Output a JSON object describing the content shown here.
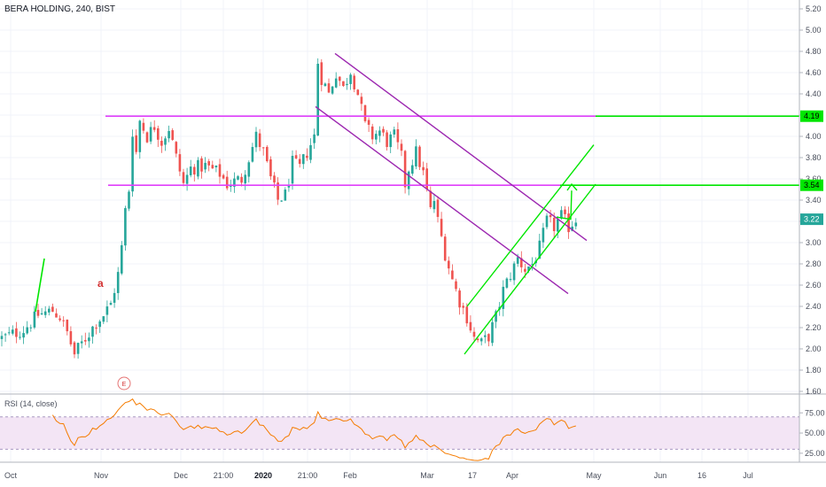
{
  "chart_data": {
    "type": "candlestick",
    "title": "BERA HOLDING, 240, BIST",
    "price_axis": {
      "range": [
        1.6,
        5.2
      ],
      "ticks": [
        "5.20",
        "5.00",
        "4.80",
        "4.60",
        "4.40",
        "4.20",
        "4.00",
        "3.80",
        "3.60",
        "3.40",
        "3.20",
        "3.00",
        "2.80",
        "2.60",
        "2.40",
        "2.20",
        "2.00",
        "1.80",
        "1.60"
      ]
    },
    "time_axis": [
      {
        "label": "Oct",
        "bold": false
      },
      {
        "label": "Nov",
        "bold": false
      },
      {
        "label": "Dec",
        "bold": false
      },
      {
        "label": "21:00",
        "bold": false
      },
      {
        "label": "2020",
        "bold": true
      },
      {
        "label": "21:00",
        "bold": false
      },
      {
        "label": "Feb",
        "bold": false
      },
      {
        "label": "Mar",
        "bold": false
      },
      {
        "label": "17",
        "bold": false
      },
      {
        "label": "Apr",
        "bold": false
      },
      {
        "label": "May",
        "bold": false
      },
      {
        "label": "Jun",
        "bold": false
      },
      {
        "label": "16",
        "bold": false
      },
      {
        "label": "Jul",
        "bold": false
      }
    ],
    "price_path": [
      [
        0,
        2.1
      ],
      [
        6,
        2.18
      ],
      [
        10,
        2.32
      ],
      [
        14,
        2.36
      ],
      [
        16,
        2.3
      ],
      [
        18,
        2.15
      ],
      [
        20,
        1.95
      ],
      [
        22,
        2.05
      ],
      [
        24,
        2.15
      ],
      [
        26,
        2.25
      ],
      [
        28,
        2.32
      ],
      [
        30,
        2.42
      ],
      [
        32,
        2.7
      ],
      [
        33,
        2.95
      ],
      [
        34,
        3.3
      ],
      [
        35,
        3.5
      ],
      [
        36,
        4.05
      ],
      [
        37,
        3.85
      ],
      [
        38,
        4.15
      ],
      [
        40,
        4.0
      ],
      [
        42,
        4.1
      ],
      [
        44,
        3.95
      ],
      [
        46,
        4.08
      ],
      [
        48,
        3.8
      ],
      [
        50,
        3.55
      ],
      [
        52,
        3.7
      ],
      [
        56,
        3.72
      ],
      [
        60,
        3.65
      ],
      [
        62,
        3.55
      ],
      [
        66,
        3.6
      ],
      [
        70,
        4.0
      ],
      [
        72,
        3.85
      ],
      [
        74,
        3.6
      ],
      [
        76,
        3.4
      ],
      [
        78,
        3.45
      ],
      [
        80,
        3.75
      ],
      [
        82,
        3.7
      ],
      [
        84,
        3.85
      ],
      [
        86,
        4.0
      ],
      [
        87,
        4.7
      ],
      [
        88,
        4.55
      ],
      [
        90,
        4.4
      ],
      [
        92,
        4.6
      ],
      [
        94,
        4.45
      ],
      [
        96,
        4.62
      ],
      [
        98,
        4.4
      ],
      [
        100,
        4.1
      ],
      [
        102,
        4.0
      ],
      [
        104,
        4.05
      ],
      [
        106,
        3.95
      ],
      [
        108,
        4.0
      ],
      [
        110,
        3.8
      ],
      [
        111,
        3.55
      ],
      [
        112,
        3.7
      ],
      [
        114,
        3.85
      ],
      [
        116,
        3.65
      ],
      [
        118,
        3.3
      ],
      [
        119,
        3.4
      ],
      [
        120,
        3.2
      ],
      [
        122,
        2.9
      ],
      [
        124,
        2.65
      ],
      [
        126,
        2.45
      ],
      [
        128,
        2.3
      ],
      [
        130,
        2.1
      ],
      [
        132,
        2.05
      ],
      [
        134,
        2.12
      ],
      [
        136,
        2.3
      ],
      [
        138,
        2.55
      ],
      [
        140,
        2.7
      ],
      [
        142,
        2.85
      ],
      [
        144,
        2.75
      ],
      [
        146,
        2.8
      ],
      [
        148,
        2.95
      ],
      [
        150,
        3.2
      ],
      [
        152,
        3.15
      ],
      [
        154,
        3.25
      ],
      [
        156,
        3.15
      ],
      [
        158,
        3.22
      ]
    ],
    "indicator": {
      "name": "RSI (14, close)",
      "ticks": [
        "75.00",
        "50.00",
        "25.00"
      ],
      "upper_band": 70,
      "lower_band": 30,
      "range": [
        15,
        95
      ]
    },
    "annotations": {
      "wave_label": "a",
      "event_marker": "E",
      "horizontal_levels": [
        {
          "price": 4.19,
          "label": "4.19",
          "color": "#e040fb",
          "extension_color": "#00e600"
        },
        {
          "price": 3.54,
          "label": "3.54",
          "color": "#e040fb",
          "extension_color": "#00e600"
        }
      ],
      "last_price": {
        "price": 3.22,
        "label": "3.22",
        "color": "#26a69a"
      },
      "descending_channel_color": "#9c27b0",
      "ascending_channel_color": "#00e600"
    },
    "colors": {
      "up": "#26a69a",
      "down": "#ef5350",
      "rsi_line": "#f57c00",
      "rsi_fill": "#f3e5f5"
    }
  }
}
